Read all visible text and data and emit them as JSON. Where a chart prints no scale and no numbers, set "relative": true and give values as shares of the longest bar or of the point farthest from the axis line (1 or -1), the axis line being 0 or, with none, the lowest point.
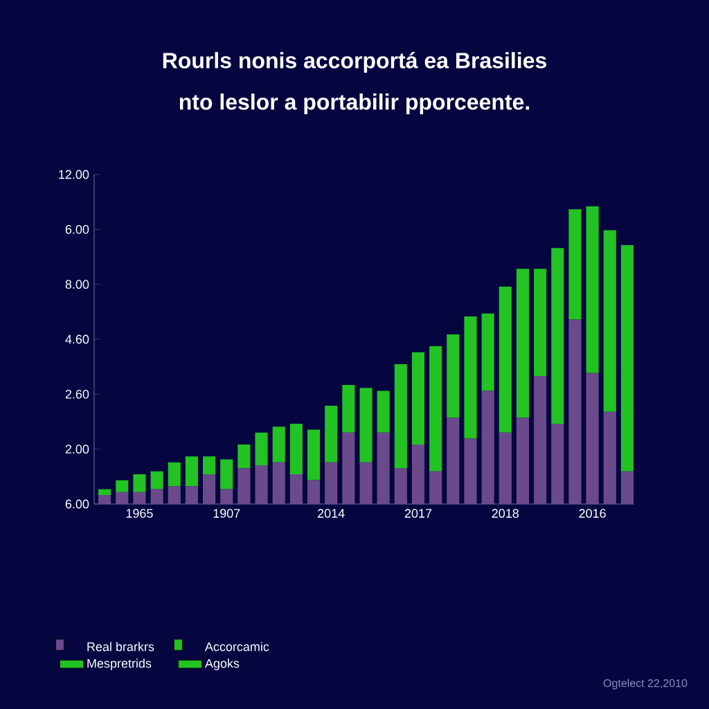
{
  "chart_data": {
    "type": "bar",
    "stacked": true,
    "relative": true,
    "title": "Rourls nonis accorportá ea Brasilies",
    "subtitle": "nto leslor a portabilir pporceente.",
    "categories": [
      null,
      null,
      "1965",
      null,
      null,
      null,
      null,
      "1907",
      null,
      null,
      null,
      null,
      null,
      "2014",
      null,
      null,
      null,
      null,
      "2017",
      null,
      null,
      null,
      null,
      "2018",
      null,
      null,
      null,
      null,
      "2016",
      null,
      null
    ],
    "legend": "bottom left",
    "series": [
      {
        "name": "Real brarkrs",
        "color": "#6b4a8c",
        "values": [
          0.03,
          0.04,
          0.04,
          0.05,
          0.06,
          0.06,
          0.1,
          0.05,
          0.12,
          0.13,
          0.14,
          0.1,
          0.08,
          0.14,
          0.24,
          0.14,
          0.24,
          0.12,
          0.2,
          0.11,
          0.29,
          0.22,
          0.38,
          0.24,
          0.29,
          0.43,
          0.27,
          0.62,
          0.44,
          0.31,
          0.11
        ]
      },
      {
        "name": "Accorcamic",
        "color": "#22c322",
        "values": [
          0.02,
          0.04,
          0.06,
          0.06,
          0.08,
          0.1,
          0.06,
          0.1,
          0.08,
          0.11,
          0.12,
          0.17,
          0.17,
          0.19,
          0.16,
          0.25,
          0.14,
          0.35,
          0.31,
          0.42,
          0.28,
          0.41,
          0.26,
          0.49,
          0.5,
          0.36,
          0.59,
          0.37,
          0.56,
          0.61,
          0.76
        ]
      },
      {
        "name": "Mespretrids",
        "color": "#22c322",
        "values": [
          null,
          null,
          null,
          null,
          null,
          null,
          null,
          null,
          null,
          null,
          null,
          null,
          null,
          null,
          null,
          null,
          null,
          null,
          null,
          null,
          null,
          null,
          null,
          null,
          null,
          null,
          null,
          null,
          null,
          null,
          null
        ]
      },
      {
        "name": "Agoks",
        "color": "#22c322",
        "values": [
          null,
          null,
          null,
          null,
          null,
          null,
          null,
          null,
          null,
          null,
          null,
          null,
          null,
          null,
          null,
          null,
          null,
          null,
          null,
          null,
          null,
          null,
          null,
          null,
          null,
          null,
          null,
          null,
          null,
          null,
          null
        ]
      }
    ],
    "annotations": [
      "6.00",
      "2.00",
      "2.60",
      "4.60",
      "8.00",
      "6.00",
      "12.00",
      "Ogtelect 22,2010"
    ]
  }
}
